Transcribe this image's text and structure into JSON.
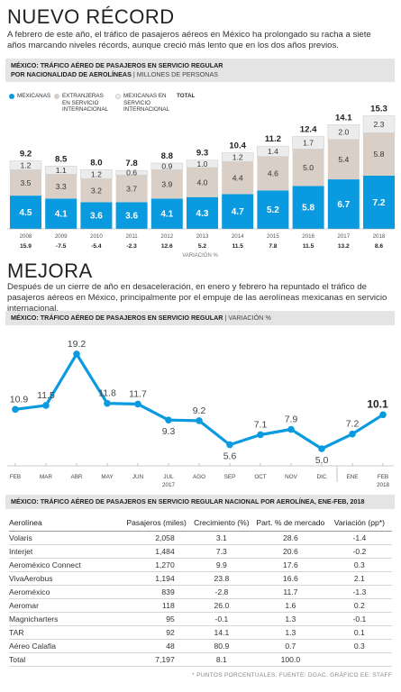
{
  "section1": {
    "title": "NUEVO RÉCORD",
    "intro": "A febrero de este año, el tráfico de pasajeros aéreos en México ha prolongado su racha a siete años marcando niveles récords, aunque creció más lento que en los dos años previos.",
    "chart_header": "MÉXICO: TRÁFICO AÉREO DE PASAJEROS EN SERVICIO REGULAR",
    "chart_header2": "POR NACIONALIDAD DE AEROLÍNEAS",
    "chart_header2_sub": "| MILLONES DE PERSONAS",
    "legend": {
      "mexicanas": "MEXICANAS",
      "extranjeras": "EXTRANJERAS EN SERVICIO INTERNACIONAL",
      "mexicanas_int": "MEXICANAS EN SERVICIO INTERNACIONAL",
      "total": "TOTAL"
    },
    "variation_label": "VARIACIÓN %",
    "colors": {
      "mexicanas": "#0a9ae0",
      "extranjeras": "#d9cfc6",
      "mexicanas_int": "#ececec"
    }
  },
  "section2": {
    "title": "MEJORA",
    "intro": "Después de un cierre de año en desaceleración, en enero y febrero ha repuntado el tráfico de pasajeros aéreos en México, principalmente por el empuje de las aerolíneas mexicanas en servicio internacional.",
    "chart_header": "MÉXICO: TRÁFICO AÉREO DE PASAJEROS EN SERVICIO REGULAR",
    "chart_header_sub": "| VARIACIÓN %",
    "line_color": "#0a9ae0"
  },
  "chart_data": [
    {
      "type": "bar",
      "categories": [
        "2008",
        "2009",
        "2010",
        "2011",
        "2012",
        "2013",
        "2014",
        "2015",
        "2016",
        "2017",
        "2018"
      ],
      "series": [
        {
          "name": "MEXICANAS",
          "values": [
            4.5,
            4.1,
            3.6,
            3.6,
            4.1,
            4.3,
            4.7,
            5.2,
            5.8,
            6.7,
            7.2
          ]
        },
        {
          "name": "EXTRANJERAS EN SERVICIO INTERNACIONAL",
          "values": [
            3.5,
            3.3,
            3.2,
            3.7,
            3.9,
            4.0,
            4.4,
            4.6,
            5.0,
            5.4,
            5.8
          ]
        },
        {
          "name": "MEXICANAS EN SERVICIO INTERNACIONAL",
          "values": [
            1.2,
            1.1,
            1.2,
            0.6,
            0.9,
            1.0,
            1.2,
            1.4,
            1.7,
            2.0,
            2.3
          ]
        }
      ],
      "totals": [
        9.2,
        8.5,
        8.0,
        7.8,
        8.8,
        9.3,
        10.4,
        11.2,
        12.4,
        14.1,
        15.3
      ],
      "variation": [
        "15.9",
        "-7.5",
        "-5.4",
        "-2.3",
        "12.6",
        "5.2",
        "11.5",
        "7.8",
        "11.5",
        "13.2",
        "8.6"
      ],
      "ylim": [
        0,
        16
      ]
    },
    {
      "type": "line",
      "categories": [
        "FEB",
        "MAR",
        "ABR",
        "MAY",
        "JUN",
        "JUL",
        "AGO",
        "SEP",
        "OCT",
        "NOV",
        "DIC",
        "ENE",
        "FEB"
      ],
      "year_labels": {
        "5": "2017",
        "12": "2018"
      },
      "values": [
        10.9,
        11.5,
        19.2,
        11.8,
        11.7,
        9.3,
        9.2,
        5.6,
        7.1,
        7.9,
        5.0,
        7.2,
        10.1
      ],
      "ylim": [
        0,
        21
      ]
    }
  ],
  "table": {
    "title": "MÉXICO: TRÁFICO AÉREO DE PASAJEROS EN SERVICIO REGULAR NACIONAL POR AEROLÍNEA, ENE-FEB, 2018",
    "columns": [
      "Aerolínea",
      "Pasajeros (miles)",
      "Crecimiento (%)",
      "Part. % de mercado",
      "Variación (pp*)"
    ],
    "rows": [
      [
        "Volaris",
        "2,058",
        "3.1",
        "28.6",
        "-1.4"
      ],
      [
        "Interjet",
        "1,484",
        "7.3",
        "20.6",
        "-0.2"
      ],
      [
        "Aeroméxico Connect",
        "1,270",
        "9.9",
        "17.6",
        "0.3"
      ],
      [
        "VivaAerobus",
        "1,194",
        "23.8",
        "16.6",
        "2.1"
      ],
      [
        "Aeroméxico",
        "839",
        "-2.8",
        "11.7",
        "-1.3"
      ],
      [
        "Aeromar",
        "118",
        "26.0",
        "1.6",
        "0.2"
      ],
      [
        "Magnicharters",
        "95",
        "-0.1",
        "1.3",
        "-0.1"
      ],
      [
        "TAR",
        "92",
        "14.1",
        "1.3",
        "0.1"
      ],
      [
        "Aéreo Calafia",
        "48",
        "80.9",
        "0.7",
        "0.3"
      ],
      [
        "Total",
        "7,197",
        "8.1",
        "100.0",
        ""
      ]
    ],
    "footnote": "* PUNTOS PORCENTUALES. FUENTE: DGAC. GRÁFICO EE: STAFF"
  }
}
